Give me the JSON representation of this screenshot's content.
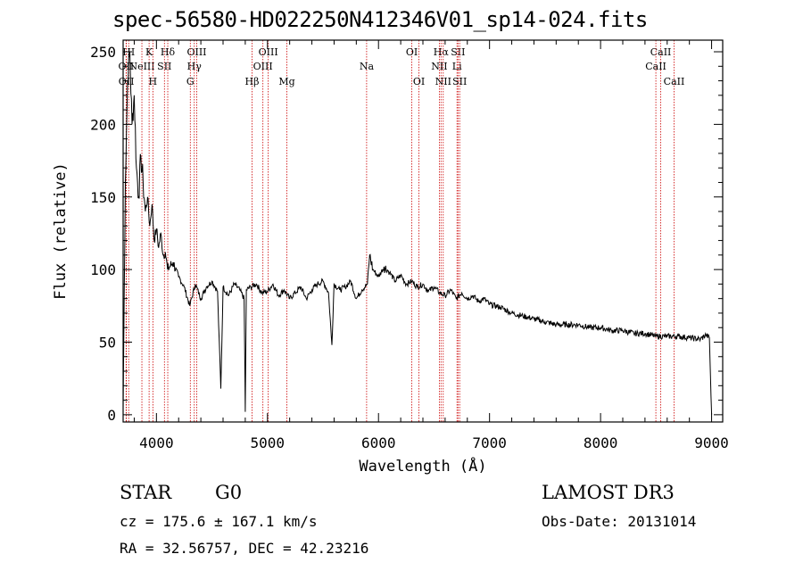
{
  "chart_data": {
    "type": "line",
    "title": "spec-56580-HD022250N412346V01_sp14-024.fits",
    "xlabel": "Wavelength (Å)",
    "ylabel": "Flux (relative)",
    "xlim": [
      3700,
      9100
    ],
    "ylim": [
      -5,
      258
    ],
    "xticks": [
      4000,
      5000,
      6000,
      7000,
      8000,
      9000
    ],
    "yticks": [
      0,
      50,
      100,
      150,
      200,
      250
    ],
    "series": [
      {
        "name": "flux",
        "x": [
          3700,
          3720,
          3740,
          3760,
          3780,
          3800,
          3820,
          3840,
          3860,
          3880,
          3900,
          3920,
          3940,
          3960,
          3980,
          4000,
          4020,
          4040,
          4060,
          4080,
          4100,
          4150,
          4200,
          4250,
          4300,
          4350,
          4400,
          4450,
          4500,
          4550,
          4580,
          4600,
          4650,
          4700,
          4750,
          4790,
          4800,
          4810,
          4850,
          4900,
          4950,
          5000,
          5050,
          5100,
          5150,
          5200,
          5250,
          5300,
          5350,
          5400,
          5450,
          5500,
          5550,
          5580,
          5600,
          5650,
          5700,
          5750,
          5800,
          5850,
          5900,
          5920,
          5950,
          6000,
          6050,
          6100,
          6150,
          6200,
          6250,
          6300,
          6350,
          6400,
          6450,
          6500,
          6550,
          6600,
          6650,
          6700,
          6750,
          6800,
          6850,
          6900,
          6950,
          7000,
          7100,
          7200,
          7300,
          7400,
          7500,
          7600,
          7700,
          7800,
          7900,
          8000,
          8100,
          8200,
          8300,
          8400,
          8500,
          8600,
          8700,
          8800,
          8900,
          8950,
          8980,
          9000
        ],
        "y": [
          5,
          160,
          230,
          250,
          200,
          220,
          170,
          150,
          178,
          160,
          140,
          150,
          130,
          145,
          120,
          128,
          115,
          125,
          110,
          112,
          100,
          105,
          95,
          88,
          75,
          90,
          80,
          88,
          92,
          85,
          18,
          88,
          82,
          90,
          86,
          80,
          2,
          86,
          88,
          90,
          84,
          85,
          90,
          82,
          86,
          80,
          84,
          88,
          80,
          86,
          90,
          92,
          84,
          48,
          90,
          86,
          88,
          92,
          80,
          86,
          90,
          110,
          100,
          95,
          102,
          98,
          92,
          96,
          90,
          92,
          88,
          90,
          85,
          88,
          84,
          82,
          86,
          80,
          84,
          80,
          82,
          78,
          80,
          76,
          74,
          70,
          68,
          66,
          64,
          62,
          62,
          62,
          60,
          60,
          58,
          58,
          56,
          56,
          54,
          54,
          54,
          53,
          52,
          55,
          53,
          0
        ]
      }
    ],
    "lines": [
      {
        "label": "HI",
        "x": 3750,
        "row": 1
      },
      {
        "label": "OII",
        "x": 3727,
        "row": 2
      },
      {
        "label": "OII",
        "x": 3729,
        "row": 3
      },
      {
        "label": "K",
        "x": 3934,
        "row": 1
      },
      {
        "label": "NeIII",
        "x": 3869,
        "row": 2
      },
      {
        "label": "H",
        "x": 3968,
        "row": 3
      },
      {
        "label": "Hδ",
        "x": 4102,
        "row": 1
      },
      {
        "label": "SII",
        "x": 4072,
        "row": 2
      },
      {
        "label": "OIII",
        "x": 4363,
        "row": 1
      },
      {
        "label": "Hγ",
        "x": 4341,
        "row": 2
      },
      {
        "label": "G",
        "x": 4305,
        "row": 3
      },
      {
        "label": "OIII",
        "x": 5007,
        "row": 1
      },
      {
        "label": "OIII",
        "x": 4959,
        "row": 2
      },
      {
        "label": "Hβ",
        "x": 4861,
        "row": 3
      },
      {
        "label": "Mg",
        "x": 5175,
        "row": 3
      },
      {
        "label": "Na",
        "x": 5893,
        "row": 2
      },
      {
        "label": "OI",
        "x": 6300,
        "row": 1
      },
      {
        "label": "OI",
        "x": 6364,
        "row": 3
      },
      {
        "label": "Hα",
        "x": 6563,
        "row": 1
      },
      {
        "label": "NII",
        "x": 6548,
        "row": 2
      },
      {
        "label": "NII",
        "x": 6583,
        "row": 3
      },
      {
        "label": "SII",
        "x": 6716,
        "row": 1
      },
      {
        "label": "Li",
        "x": 6707,
        "row": 2
      },
      {
        "label": "SII",
        "x": 6731,
        "row": 3
      },
      {
        "label": "CaII",
        "x": 8542,
        "row": 1
      },
      {
        "label": "CaII",
        "x": 8498,
        "row": 2
      },
      {
        "label": "CaII",
        "x": 8662,
        "row": 3
      }
    ]
  },
  "info": {
    "object_type": "STAR",
    "subclass": "G0",
    "survey": "LAMOST DR3",
    "cz": "cz = 175.6 ± 167.1 km/s",
    "obs_date": "Obs-Date: 20131014",
    "coords": "RA =  32.56757, DEC =  42.23216"
  },
  "colors": {
    "spectrum": "#000000",
    "line_marker": "#cc0000",
    "axis": "#000000"
  }
}
